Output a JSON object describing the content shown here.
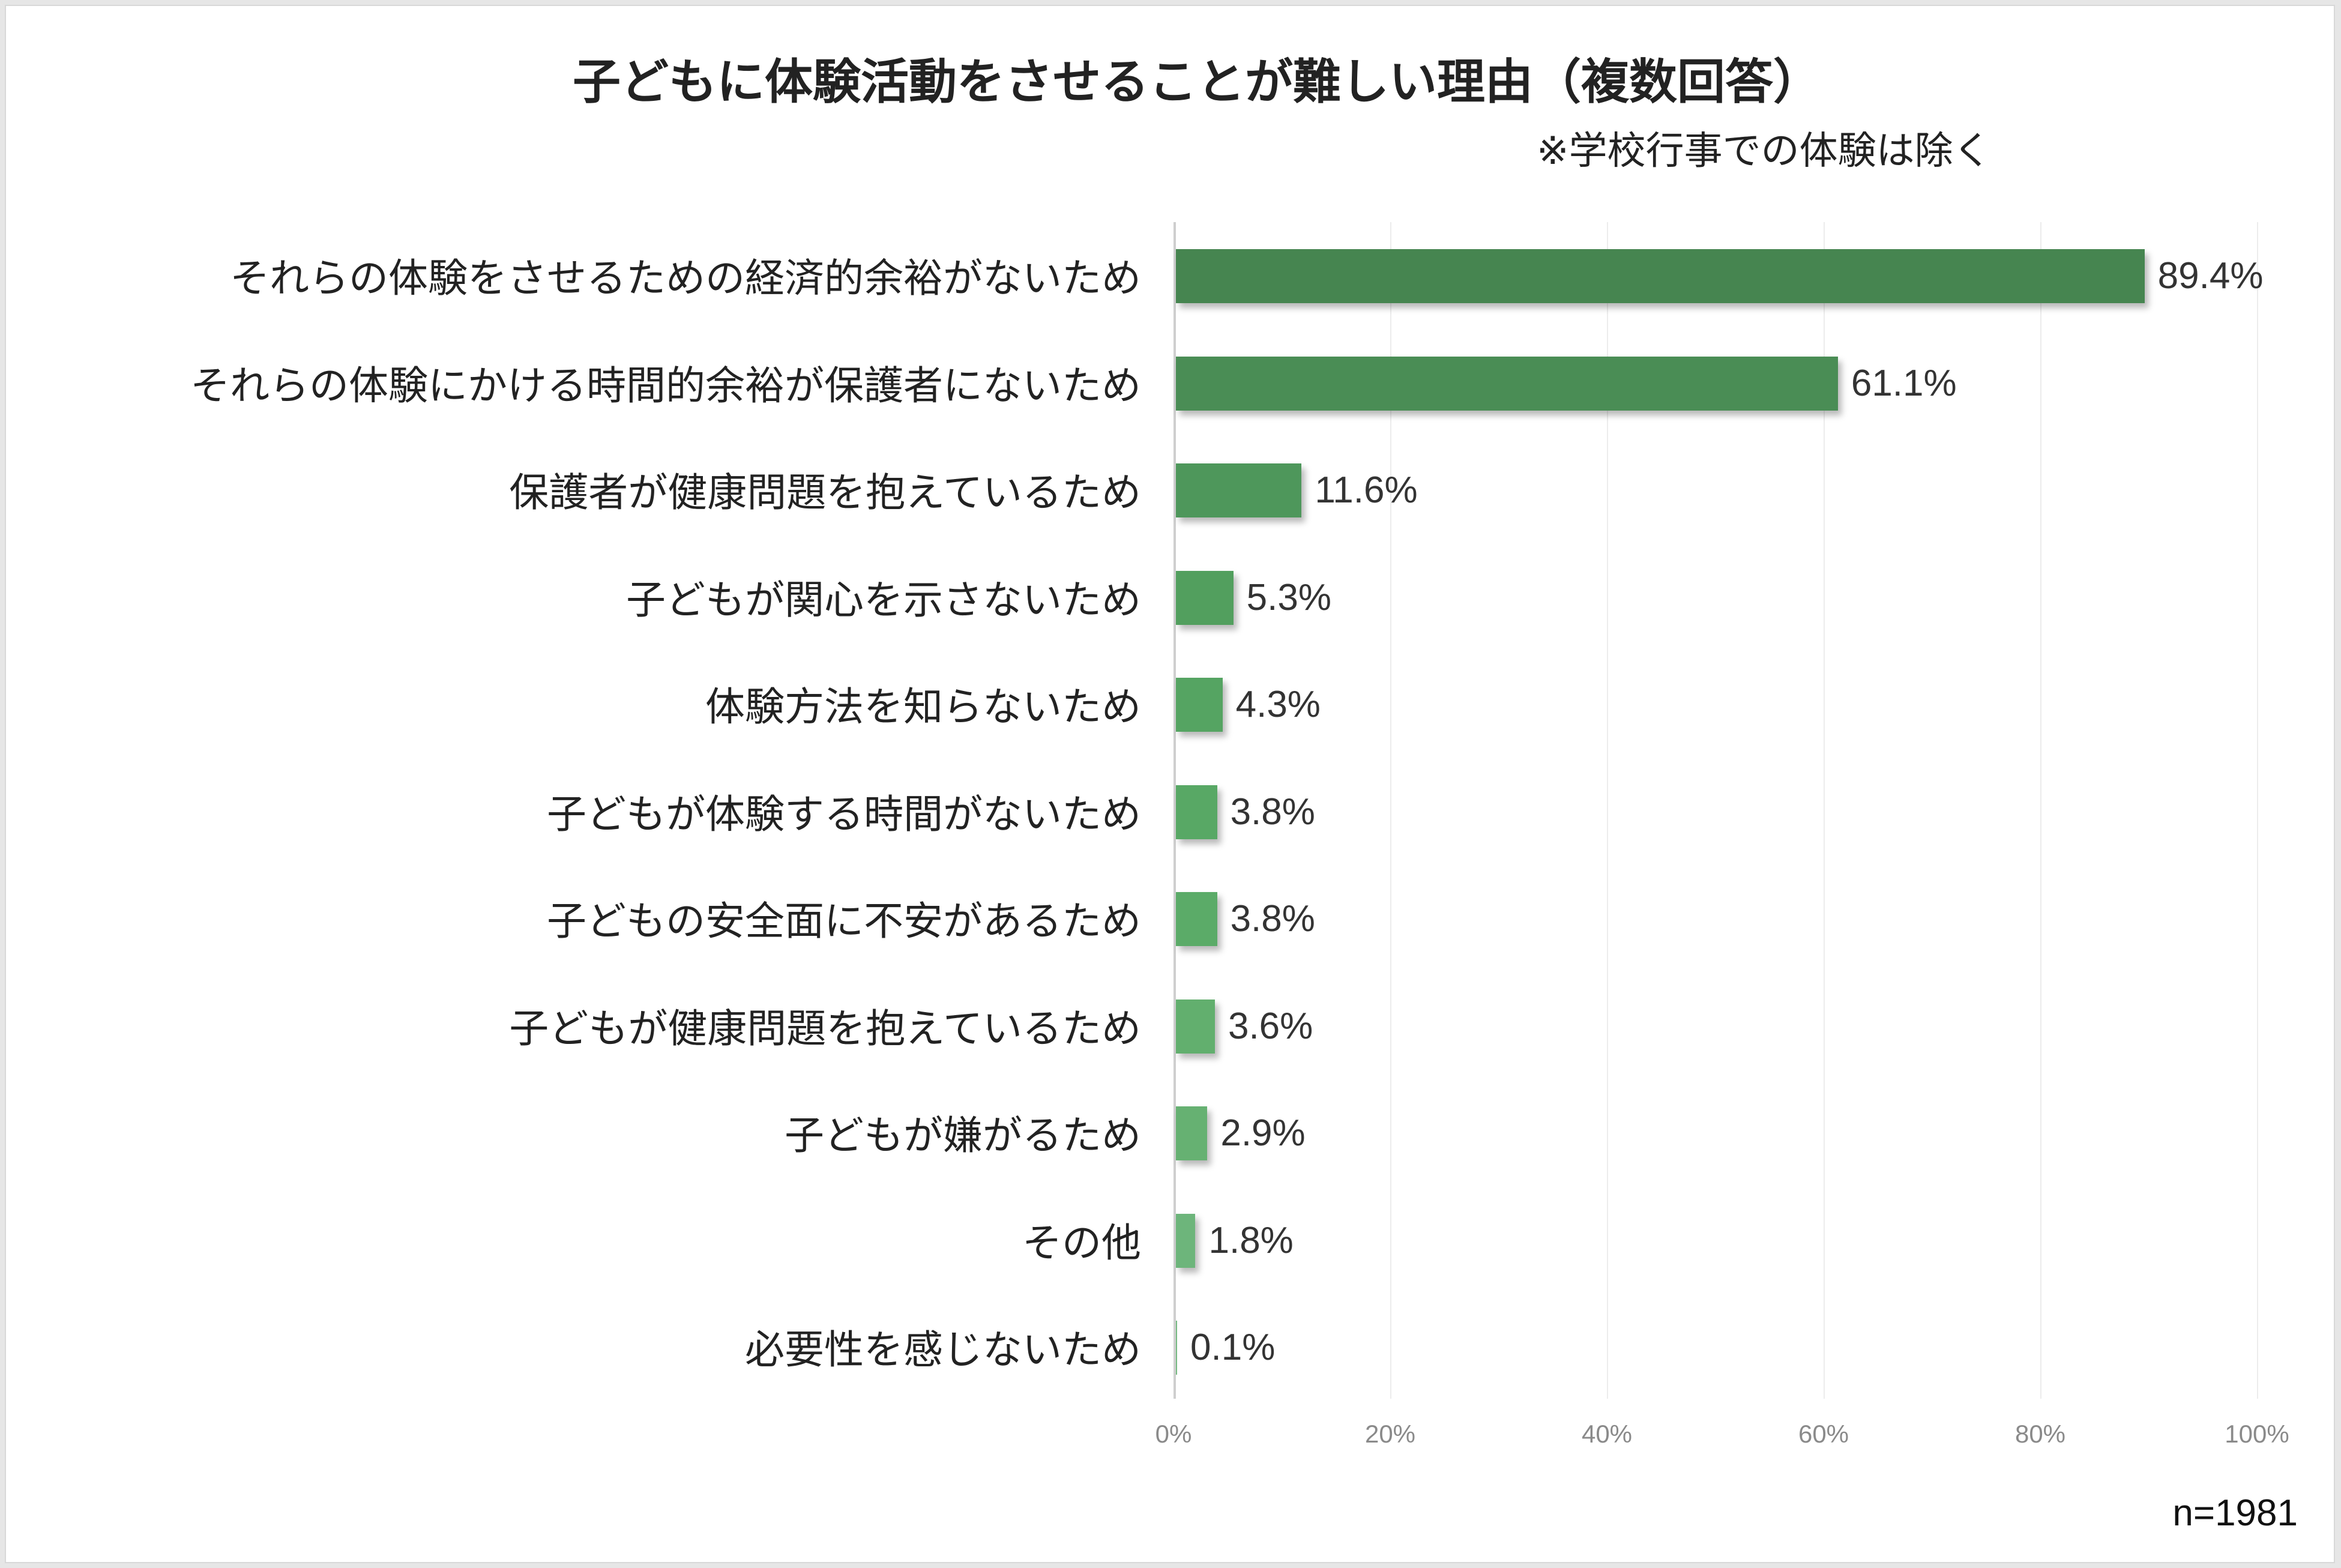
{
  "title": "子どもに体験活動をさせることが難しい理由（複数回答）",
  "subtitle": "※学校行事での体験は除く",
  "sample_size": "n=1981",
  "x_ticks": [
    "0%",
    "20%",
    "40%",
    "60%",
    "80%",
    "100%"
  ],
  "bars": [
    {
      "label": "それらの体験をさせるための経済的余裕がないため",
      "value": 89.4,
      "value_label": "89.4%",
      "color": "#468550"
    },
    {
      "label": "それらの体験にかける時間的余裕が保護者にないため",
      "value": 61.1,
      "value_label": "61.1%",
      "color": "#4a8d55"
    },
    {
      "label": "保護者が健康問題を抱えているため",
      "value": 11.6,
      "value_label": "11.6%",
      "color": "#4e975b"
    },
    {
      "label": "子どもが関心を示さないため",
      "value": 5.3,
      "value_label": "5.3%",
      "color": "#529f5e"
    },
    {
      "label": "体験方法を知らないため",
      "value": 4.3,
      "value_label": "4.3%",
      "color": "#55a462"
    },
    {
      "label": "子どもが体験する時間がないため",
      "value": 3.8,
      "value_label": "3.8%",
      "color": "#58a865"
    },
    {
      "label": "子どもの安全面に不安があるため",
      "value": 3.8,
      "value_label": "3.8%",
      "color": "#5bab68"
    },
    {
      "label": "子どもが健康問題を抱えているため",
      "value": 3.6,
      "value_label": "3.6%",
      "color": "#62af6e"
    },
    {
      "label": "子どもが嫌がるため",
      "value": 2.9,
      "value_label": "2.9%",
      "color": "#66b172"
    },
    {
      "label": "その他",
      "value": 1.8,
      "value_label": "1.8%",
      "color": "#6db57b"
    },
    {
      "label": "必要性を感じないため",
      "value": 0.1,
      "value_label": "0.1%",
      "color": "#75ba82"
    }
  ],
  "chart_data": {
    "type": "bar",
    "orientation": "horizontal",
    "title": "子どもに体験活動をさせることが難しい理由（複数回答）",
    "subtitle": "※学校行事での体験は除く",
    "categories": [
      "それらの体験をさせるための経済的余裕がないため",
      "それらの体験にかける時間的余裕が保護者にないため",
      "保護者が健康問題を抱えているため",
      "子どもが関心を示さないため",
      "体験方法を知らないため",
      "子どもが体験する時間がないため",
      "子どもの安全面に不安があるため",
      "子どもが健康問題を抱えているため",
      "子どもが嫌がるため",
      "その他",
      "必要性を感じないため"
    ],
    "values": [
      89.4,
      61.1,
      11.6,
      5.3,
      4.3,
      3.8,
      3.8,
      3.6,
      2.9,
      1.8,
      0.1
    ],
    "xlabel": "",
    "ylabel": "",
    "xlim": [
      0,
      100
    ],
    "x_tick_labels": [
      "0%",
      "20%",
      "40%",
      "60%",
      "80%",
      "100%"
    ],
    "grid": true,
    "legend": "none",
    "annotations": [
      "n=1981"
    ]
  }
}
